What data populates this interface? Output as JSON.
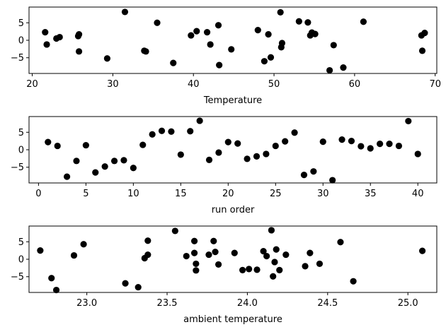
{
  "chart_data": [
    {
      "type": "scatter",
      "xlabel": "Temperature",
      "ylabel": "",
      "xlim": [
        19.6,
        70.2
      ],
      "ylim": [
        -9.5,
        9.5
      ],
      "xticks": [
        20,
        30,
        40,
        50,
        60,
        70
      ],
      "yticks": [
        -5,
        0,
        5
      ],
      "grid": false,
      "x": [
        21.6,
        21.8,
        23.0,
        23.4,
        25.7,
        25.8,
        25.8,
        29.3,
        31.5,
        33.9,
        34.1,
        35.5,
        37.5,
        39.7,
        40.4,
        41.7,
        42.1,
        43.1,
        43.2,
        44.7,
        48.0,
        48.8,
        49.3,
        49.6,
        50.8,
        50.9,
        51.0,
        53.1,
        54.2,
        54.5,
        54.7,
        55.1,
        56.9,
        57.4,
        58.6,
        61.1,
        68.3,
        68.4,
        68.7
      ],
      "y": [
        2.3,
        -1.2,
        0.5,
        0.9,
        1.2,
        1.7,
        -3.2,
        -5.2,
        8.1,
        -3.0,
        -3.2,
        5.0,
        -6.5,
        1.4,
        2.6,
        2.3,
        -1.2,
        4.3,
        -7.1,
        -2.6,
        2.9,
        -6.0,
        1.7,
        -4.9,
        8.0,
        -2.0,
        -0.8,
        5.4,
        5.1,
        1.4,
        2.2,
        1.8,
        -8.6,
        -1.4,
        -7.8,
        5.3,
        1.4,
        -3.0,
        2.1
      ]
    },
    {
      "type": "scatter",
      "xlabel": "run order",
      "ylabel": "",
      "xlim": [
        -1.0,
        42.0
      ],
      "ylim": [
        -9.5,
        9.5
      ],
      "xticks": [
        0,
        5,
        10,
        15,
        20,
        25,
        30,
        35,
        40
      ],
      "yticks": [
        -5,
        0,
        5
      ],
      "grid": false,
      "x": [
        1,
        2,
        3,
        4,
        5,
        6,
        7,
        8,
        9,
        10,
        11,
        12,
        13,
        14,
        15,
        16,
        17,
        18,
        19,
        20,
        21,
        22,
        23,
        24,
        25,
        26,
        27,
        28,
        29,
        30,
        31,
        32,
        33,
        34,
        35,
        36,
        37,
        38,
        39,
        40
      ],
      "y": [
        2.2,
        1.1,
        -7.7,
        -3.2,
        1.3,
        -6.5,
        -4.8,
        -3.2,
        -3.0,
        -5.2,
        1.4,
        4.4,
        5.4,
        5.2,
        -1.4,
        5.3,
        8.3,
        -2.9,
        -0.8,
        2.2,
        1.8,
        -2.6,
        -1.9,
        -1.2,
        1.1,
        2.4,
        4.9,
        -7.2,
        -6.2,
        2.3,
        -8.7,
        2.9,
        2.5,
        1.0,
        0.4,
        1.7,
        1.7,
        1.1,
        8.2,
        -1.2
      ]
    },
    {
      "type": "scatter",
      "xlabel": "ambient temperature",
      "ylabel": "",
      "xlim": [
        22.64,
        25.18
      ],
      "ylim": [
        -9.5,
        9.5
      ],
      "xticks": [
        23.0,
        23.5,
        24.0,
        24.5,
        25.0
      ],
      "yticks": [
        -5,
        0,
        5
      ],
      "grid": false,
      "x": [
        22.71,
        22.78,
        22.81,
        22.92,
        22.98,
        23.24,
        23.32,
        23.36,
        23.38,
        23.38,
        23.55,
        23.62,
        23.67,
        23.67,
        23.68,
        23.68,
        23.76,
        23.79,
        23.8,
        23.82,
        23.92,
        23.97,
        24.01,
        24.06,
        24.1,
        24.12,
        24.15,
        24.16,
        24.17,
        24.18,
        24.2,
        24.24,
        24.36,
        24.39,
        24.45,
        24.58,
        24.66,
        25.09
      ],
      "y": [
        2.5,
        -5.4,
        -8.8,
        1.1,
        4.3,
        -6.9,
        -8.0,
        0.3,
        1.3,
        5.3,
        8.1,
        0.9,
        5.2,
        1.8,
        -3.2,
        -1.3,
        1.3,
        5.2,
        2.1,
        -1.5,
        1.8,
        -3.1,
        -2.8,
        -3.0,
        2.3,
        0.9,
        8.3,
        -4.9,
        -0.8,
        2.8,
        -3.1,
        1.3,
        -2.0,
        1.8,
        -1.3,
        4.9,
        -6.3,
        2.4
      ]
    }
  ]
}
